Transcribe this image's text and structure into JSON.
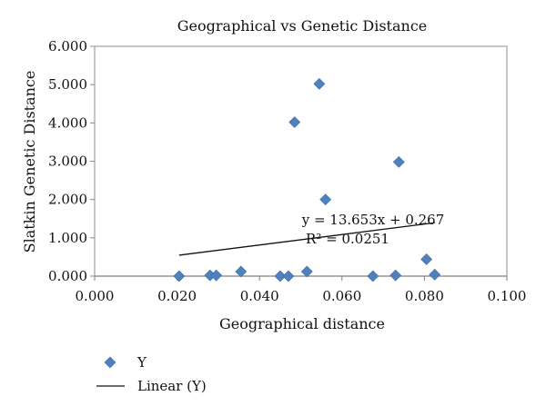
{
  "chart_data": {
    "type": "scatter",
    "title": "Geographical vs Genetic Distance",
    "xlabel": "Geographical distance",
    "ylabel": "Slatkin Genetic Distance",
    "xlim": [
      0.0,
      0.1
    ],
    "ylim": [
      0.0,
      6.0
    ],
    "x_ticks": [
      "0.000",
      "0.020",
      "0.040",
      "0.060",
      "0.080",
      "0.100"
    ],
    "y_ticks": [
      "0.000",
      "1.000",
      "2.000",
      "3.000",
      "4.000",
      "5.000",
      "6.000"
    ],
    "grid": false,
    "legend_position": "bottom-left",
    "series": [
      {
        "name": "Y",
        "marker": "diamond",
        "color": "#4f81bd",
        "points": [
          {
            "x": 0.0205,
            "y": 0.0
          },
          {
            "x": 0.028,
            "y": 0.02
          },
          {
            "x": 0.0295,
            "y": 0.02
          },
          {
            "x": 0.0355,
            "y": 0.12
          },
          {
            "x": 0.045,
            "y": 0.0
          },
          {
            "x": 0.047,
            "y": 0.0
          },
          {
            "x": 0.0515,
            "y": 0.12
          },
          {
            "x": 0.0485,
            "y": 4.02
          },
          {
            "x": 0.0545,
            "y": 5.02
          },
          {
            "x": 0.056,
            "y": 2.0
          },
          {
            "x": 0.0675,
            "y": 0.0
          },
          {
            "x": 0.073,
            "y": 0.02
          },
          {
            "x": 0.0738,
            "y": 2.98
          },
          {
            "x": 0.0805,
            "y": 0.44
          },
          {
            "x": 0.0825,
            "y": 0.04
          }
        ]
      }
    ],
    "trendline": {
      "name": "Linear (Y)",
      "type": "linear",
      "slope": 13.653,
      "intercept": 0.267,
      "x_start": 0.0205,
      "x_end": 0.0825,
      "equation_text": "y = 13.653x + 0.267",
      "r2_text": "R² = 0.0251"
    }
  }
}
